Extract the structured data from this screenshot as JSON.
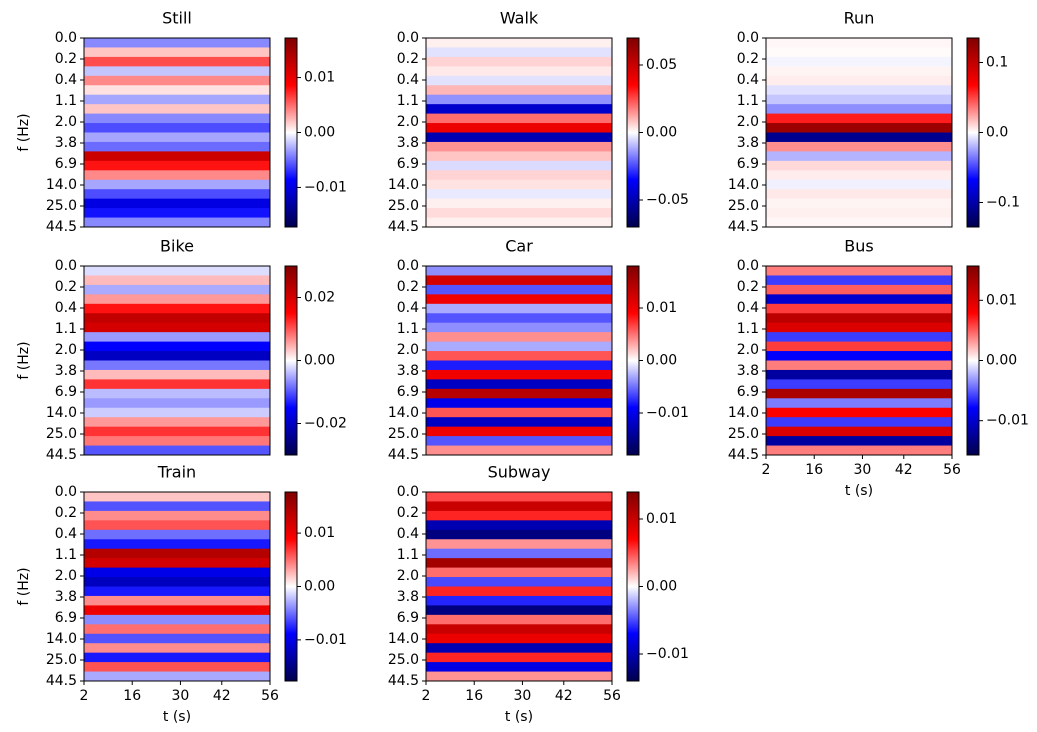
{
  "chart_data": [
    {
      "type": "heatmap",
      "title": "Still",
      "colormap": "seismic",
      "ylabel": "f (Hz)",
      "ytick_labels": [
        "0.0",
        "0.2",
        "0.4",
        "1.1",
        "2.0",
        "3.8",
        "6.9",
        "14.0",
        "25.0",
        "44.5"
      ],
      "values": [
        -0.004,
        0.002,
        0.006,
        -0.002,
        0.004,
        0.001,
        -0.003,
        0.002,
        -0.004,
        -0.006,
        -0.003,
        -0.005,
        0.012,
        0.008,
        0.004,
        -0.003,
        -0.006,
        -0.01,
        -0.008,
        -0.004
      ],
      "clim": [
        -0.0172,
        0.0172
      ],
      "cticks": [
        {
          "value": -0.01,
          "label": "−0.01"
        },
        {
          "value": 0,
          "label": "0.00"
        },
        0.01
      ]
    },
    {
      "type": "heatmap",
      "title": "Walk",
      "colormap": "seismic",
      "ytick_labels": [
        "0.0",
        "0.2",
        "0.4",
        "1.1",
        "2.0",
        "3.8",
        "6.9",
        "14.0",
        "25.0",
        "44.5"
      ],
      "values": [
        0.002,
        -0.004,
        0.006,
        0.003,
        -0.004,
        0.01,
        -0.015,
        -0.045,
        0.02,
        0.04,
        -0.05,
        0.015,
        0.008,
        -0.005,
        0.006,
        0.004,
        -0.003,
        0.002,
        0.005,
        0.002
      ],
      "clim": [
        -0.07,
        0.07
      ],
      "cticks": [
        {
          "value": -0.05,
          "label": "−0.05"
        },
        {
          "value": 0,
          "label": "0.00"
        },
        0.05
      ]
    },
    {
      "type": "heatmap",
      "title": "Run",
      "colormap": "seismic",
      "ytick_labels": [
        "0.0",
        "0.2",
        "0.4",
        "1.1",
        "2.0",
        "3.8",
        "6.9",
        "14.0",
        "25.0",
        "44.5"
      ],
      "values": [
        0.002,
        0.001,
        -0.003,
        0.003,
        0.005,
        -0.008,
        -0.015,
        -0.03,
        0.06,
        0.12,
        -0.11,
        0.03,
        -0.02,
        0.01,
        0.005,
        -0.004,
        0.006,
        0.003,
        0.004,
        0.002
      ],
      "clim": [
        -0.135,
        0.135
      ],
      "cticks": [
        {
          "value": -0.1,
          "label": "−0.1"
        },
        {
          "value": 0,
          "label": "0.0"
        },
        0.1
      ]
    },
    {
      "type": "heatmap",
      "title": "Bike",
      "colormap": "seismic",
      "ylabel": "f (Hz)",
      "ytick_labels": [
        "0.0",
        "0.2",
        "0.4",
        "1.1",
        "2.0",
        "3.8",
        "6.9",
        "14.0",
        "25.0",
        "44.5"
      ],
      "values": [
        -0.002,
        0.004,
        -0.005,
        0.006,
        0.014,
        0.022,
        0.02,
        -0.006,
        -0.015,
        -0.02,
        -0.008,
        0.004,
        0.012,
        -0.004,
        -0.006,
        -0.003,
        0.006,
        0.012,
        0.008,
        -0.01
      ],
      "clim": [
        -0.03,
        0.03
      ],
      "cticks": [
        {
          "value": -0.02,
          "label": "−0.02"
        },
        {
          "value": 0,
          "label": "0.00"
        },
        0.02
      ]
    },
    {
      "type": "heatmap",
      "title": "Car",
      "colormap": "seismic",
      "ytick_labels": [
        "0.0",
        "0.2",
        "0.4",
        "1.1",
        "2.0",
        "3.8",
        "6.9",
        "14.0",
        "25.0",
        "44.5"
      ],
      "values": [
        -0.004,
        0.012,
        -0.006,
        0.01,
        -0.003,
        -0.006,
        -0.004,
        0.004,
        -0.003,
        0.006,
        -0.008,
        0.01,
        -0.012,
        0.014,
        -0.01,
        0.006,
        -0.012,
        0.01,
        -0.006,
        0.004
      ],
      "clim": [
        -0.018,
        0.018
      ],
      "cticks": [
        {
          "value": -0.01,
          "label": "−0.01"
        },
        {
          "value": 0,
          "label": "0.00"
        },
        0.01
      ]
    },
    {
      "type": "heatmap",
      "title": "Bus",
      "colormap": "seismic",
      "xlabel": "t (s)",
      "ytick_labels": [
        "0.0",
        "0.2",
        "0.4",
        "1.1",
        "2.0",
        "3.8",
        "6.9",
        "14.0",
        "25.0",
        "44.5"
      ],
      "xlim": [
        2,
        56
      ],
      "xticks": [
        2,
        16,
        30,
        42,
        56
      ],
      "values": [
        0.004,
        -0.006,
        0.005,
        -0.01,
        0.006,
        0.012,
        0.01,
        -0.006,
        0.006,
        -0.008,
        0.004,
        -0.012,
        -0.006,
        0.013,
        -0.004,
        0.008,
        -0.006,
        0.01,
        -0.012,
        0.004
      ],
      "clim": [
        -0.0157,
        0.0157
      ],
      "cticks": [
        {
          "value": -0.01,
          "label": "−0.01"
        },
        {
          "value": 0,
          "label": "0.00"
        },
        0.01
      ]
    },
    {
      "type": "heatmap",
      "title": "Train",
      "colormap": "seismic",
      "ylabel": "f (Hz)",
      "xlabel": "t (s)",
      "ytick_labels": [
        "0.0",
        "0.2",
        "0.4",
        "1.1",
        "2.0",
        "3.8",
        "6.9",
        "14.0",
        "25.0",
        "44.5"
      ],
      "xlim": [
        2,
        56
      ],
      "xticks": [
        2,
        16,
        30,
        42,
        56
      ],
      "values": [
        0.002,
        -0.006,
        0.004,
        0.006,
        -0.005,
        -0.008,
        0.014,
        0.012,
        -0.01,
        -0.012,
        -0.008,
        0.004,
        0.01,
        -0.004,
        0.005,
        -0.006,
        0.004,
        -0.008,
        0.006,
        -0.003
      ],
      "clim": [
        -0.0177,
        0.0177
      ],
      "cticks": [
        {
          "value": -0.01,
          "label": "−0.01"
        },
        {
          "value": 0,
          "label": "0.00"
        },
        0.01
      ]
    },
    {
      "type": "heatmap",
      "title": "Subway",
      "colormap": "seismic",
      "xlabel": "t (s)",
      "ytick_labels": [
        "0.0",
        "0.2",
        "0.4",
        "1.1",
        "2.0",
        "3.8",
        "6.9",
        "14.0",
        "25.0",
        "44.5"
      ],
      "xlim": [
        2,
        56
      ],
      "xticks": [
        2,
        16,
        30,
        42,
        56
      ],
      "values": [
        0.005,
        0.01,
        0.006,
        -0.01,
        -0.012,
        0.003,
        -0.004,
        0.012,
        0.004,
        -0.005,
        0.006,
        -0.006,
        -0.012,
        0.004,
        0.01,
        0.008,
        -0.01,
        0.006,
        -0.008,
        0.003
      ],
      "clim": [
        -0.014,
        0.014
      ],
      "cticks": [
        {
          "value": -0.01,
          "label": "−0.01"
        },
        {
          "value": 0,
          "label": "0.00"
        },
        0.01
      ]
    }
  ]
}
